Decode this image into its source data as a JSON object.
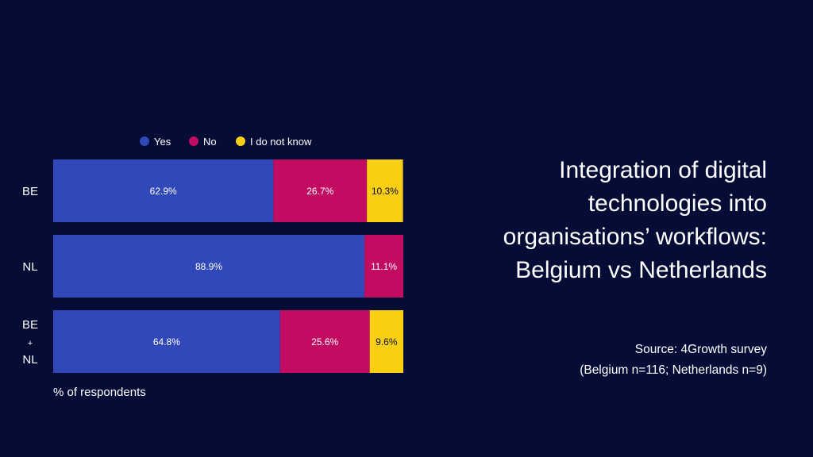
{
  "title_lines": [
    "Integration of digital",
    "technologies into",
    "organisations’ workflows:",
    "Belgium vs Netherlands"
  ],
  "source": {
    "line1": "Source: 4Growth survey",
    "line2": "(Belgium n=116; Netherlands n=9)"
  },
  "colors": {
    "background": "#050d36",
    "yes": "#3148b9",
    "no": "#c20c62",
    "dont_know": "#f9cf14",
    "text": "#ffffff"
  },
  "chart_data": {
    "type": "bar",
    "orientation": "horizontal",
    "stacked": true,
    "categories": [
      "BE",
      "NL",
      "BE + NL"
    ],
    "category_label_lines": [
      [
        "BE"
      ],
      [
        "NL"
      ],
      [
        "BE",
        "+",
        "NL"
      ]
    ],
    "series": [
      {
        "name": "Yes",
        "color": "#3148b9",
        "values": [
          62.9,
          88.9,
          64.8
        ],
        "labels": [
          "62.9%",
          "88.9%",
          "64.8%"
        ]
      },
      {
        "name": "No",
        "color": "#c20c62",
        "values": [
          26.7,
          11.1,
          25.6
        ],
        "labels": [
          "26.7%",
          "11.1%",
          "25.6%"
        ]
      },
      {
        "name": "I do not know",
        "color": "#f9cf14",
        "values": [
          10.3,
          0,
          9.6
        ],
        "labels": [
          "10.3%",
          "",
          "9.6%"
        ]
      }
    ],
    "xlabel": "% of respondents",
    "xlim": [
      0,
      100
    ],
    "legend_position": "top",
    "grid": false
  }
}
